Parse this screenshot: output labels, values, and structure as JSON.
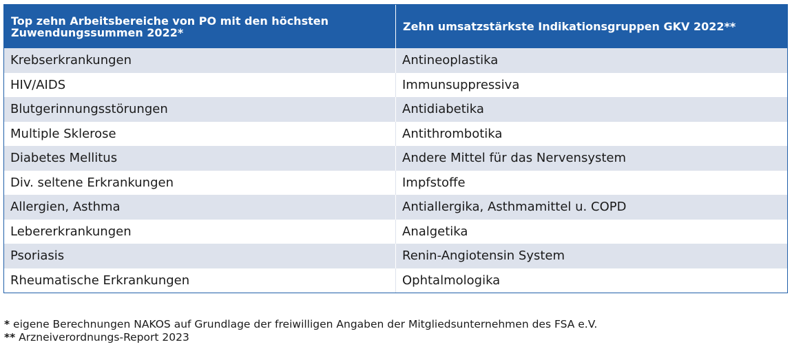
{
  "table": {
    "headers": [
      "Top zehn Arbeitsbereiche von PO mit den höchsten Zuwendungssummen 2022*",
      "Zehn umsatzstärkste Indikationsgruppen GKV 2022**"
    ],
    "rows": [
      [
        "Krebserkrankungen",
        "Antineoplastika"
      ],
      [
        "HIV/AIDS",
        "Immunsuppressiva"
      ],
      [
        "Blutgerinnungsstörungen",
        "Antidiabetika"
      ],
      [
        "Multiple Sklerose",
        "Antithrombotika"
      ],
      [
        "Diabetes Mellitus",
        "Andere Mittel für das Nervensystem"
      ],
      [
        "Div. seltene Erkrankungen",
        "Impfstoffe"
      ],
      [
        "Allergien, Asthma",
        "Antiallergika, Asthmamittel u. COPD"
      ],
      [
        "Lebererkrankungen",
        "Analgetika"
      ],
      [
        "Psoriasis",
        "Renin-Angiotensin System"
      ],
      [
        "Rheumatische Erkrankungen",
        "Ophtalmologika"
      ]
    ]
  },
  "footnotes": [
    {
      "mark": "*",
      "text": " eigene Berechnungen NAKOS auf Grundlage der freiwilligen Angaben der Mitgliedsunternehmen des FSA e.V."
    },
    {
      "mark": "**",
      "text": " Arzneiverordnungs-Report 2023"
    }
  ],
  "colors": {
    "header_bg": "#1f5ea8",
    "stripe_bg": "#dde2ec"
  }
}
